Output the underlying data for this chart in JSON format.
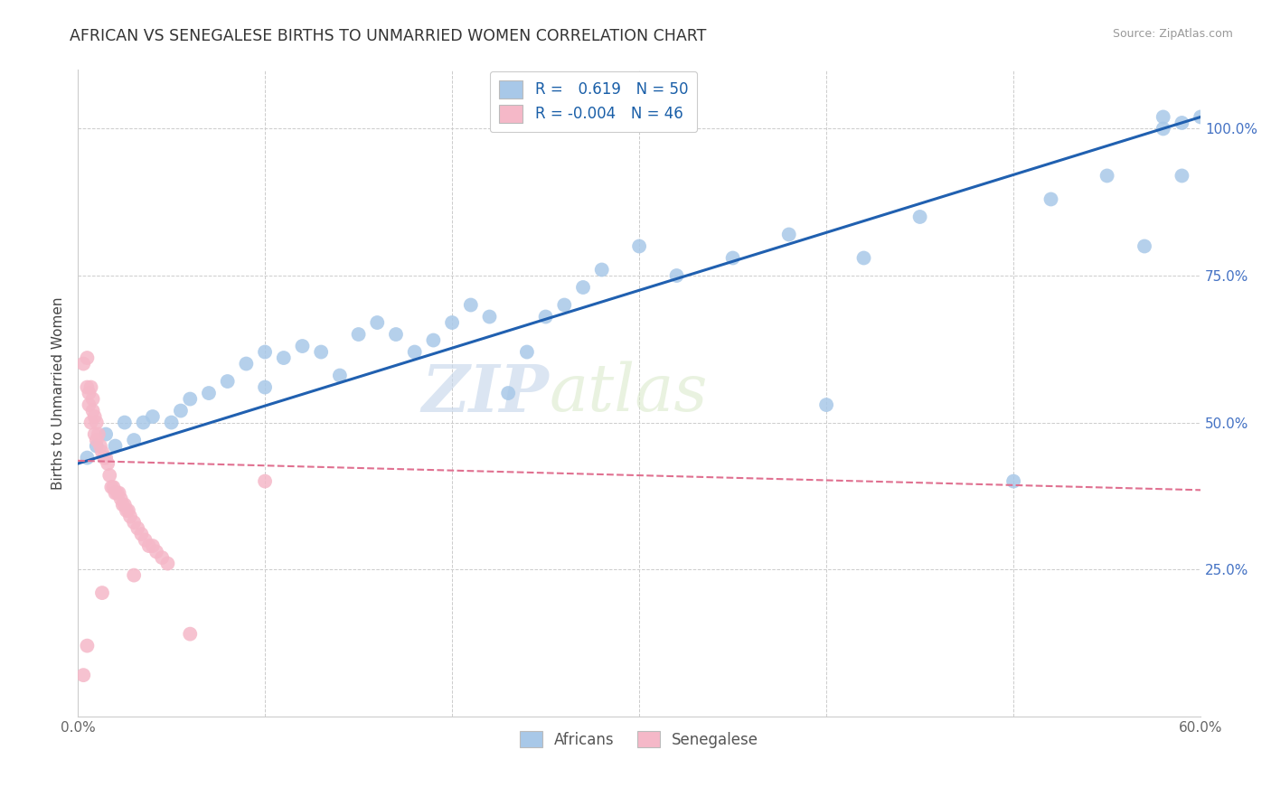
{
  "title": "AFRICAN VS SENEGALESE BIRTHS TO UNMARRIED WOMEN CORRELATION CHART",
  "source": "Source: ZipAtlas.com",
  "ylabel": "Births to Unmarried Women",
  "x_min": 0.0,
  "x_max": 0.6,
  "y_min": 0.0,
  "y_max": 1.1,
  "african_color": "#a8c8e8",
  "senegalese_color": "#f5b8c8",
  "trendline_african_color": "#2060b0",
  "trendline_senegalese_color": "#e07090",
  "african_R": 0.619,
  "african_N": 50,
  "senegalese_R": -0.004,
  "senegalese_N": 46,
  "watermark_zip": "ZIP",
  "watermark_atlas": "atlas",
  "legend_label_african": "Africans",
  "legend_label_senegalese": "Senegalese",
  "african_x": [
    0.005,
    0.01,
    0.015,
    0.02,
    0.025,
    0.03,
    0.035,
    0.04,
    0.05,
    0.055,
    0.06,
    0.07,
    0.08,
    0.09,
    0.1,
    0.1,
    0.11,
    0.12,
    0.13,
    0.14,
    0.15,
    0.16,
    0.17,
    0.18,
    0.19,
    0.2,
    0.21,
    0.22,
    0.23,
    0.24,
    0.25,
    0.26,
    0.27,
    0.28,
    0.3,
    0.32,
    0.35,
    0.38,
    0.4,
    0.42,
    0.45,
    0.5,
    0.52,
    0.55,
    0.57,
    0.58,
    0.58,
    0.59,
    0.59,
    0.6
  ],
  "african_y": [
    0.44,
    0.46,
    0.48,
    0.46,
    0.5,
    0.47,
    0.5,
    0.51,
    0.5,
    0.52,
    0.54,
    0.55,
    0.57,
    0.6,
    0.62,
    0.56,
    0.61,
    0.63,
    0.62,
    0.58,
    0.65,
    0.67,
    0.65,
    0.62,
    0.64,
    0.67,
    0.7,
    0.68,
    0.55,
    0.62,
    0.68,
    0.7,
    0.73,
    0.76,
    0.8,
    0.75,
    0.78,
    0.82,
    0.53,
    0.78,
    0.85,
    0.4,
    0.88,
    0.92,
    0.8,
    1.0,
    1.02,
    1.01,
    0.92,
    1.02
  ],
  "senegalese_x": [
    0.003,
    0.005,
    0.005,
    0.006,
    0.006,
    0.007,
    0.007,
    0.008,
    0.008,
    0.009,
    0.009,
    0.01,
    0.01,
    0.011,
    0.012,
    0.013,
    0.014,
    0.015,
    0.016,
    0.017,
    0.018,
    0.019,
    0.02,
    0.021,
    0.022,
    0.023,
    0.024,
    0.025,
    0.026,
    0.027,
    0.028,
    0.03,
    0.032,
    0.034,
    0.036,
    0.038,
    0.04,
    0.042,
    0.045,
    0.048,
    0.003,
    0.005,
    0.013,
    0.03,
    0.06,
    0.1
  ],
  "senegalese_y": [
    0.6,
    0.61,
    0.56,
    0.55,
    0.53,
    0.56,
    0.5,
    0.54,
    0.52,
    0.51,
    0.48,
    0.5,
    0.47,
    0.48,
    0.46,
    0.45,
    0.44,
    0.44,
    0.43,
    0.41,
    0.39,
    0.39,
    0.38,
    0.38,
    0.38,
    0.37,
    0.36,
    0.36,
    0.35,
    0.35,
    0.34,
    0.33,
    0.32,
    0.31,
    0.3,
    0.29,
    0.29,
    0.28,
    0.27,
    0.26,
    0.07,
    0.12,
    0.21,
    0.24,
    0.14,
    0.4
  ],
  "trendline_african_x0": 0.0,
  "trendline_african_y0": 0.43,
  "trendline_african_x1": 0.6,
  "trendline_african_y1": 1.02,
  "trendline_senegalese_x0": 0.0,
  "trendline_senegalese_y0": 0.435,
  "trendline_senegalese_x1": 0.6,
  "trendline_senegalese_y1": 0.385
}
